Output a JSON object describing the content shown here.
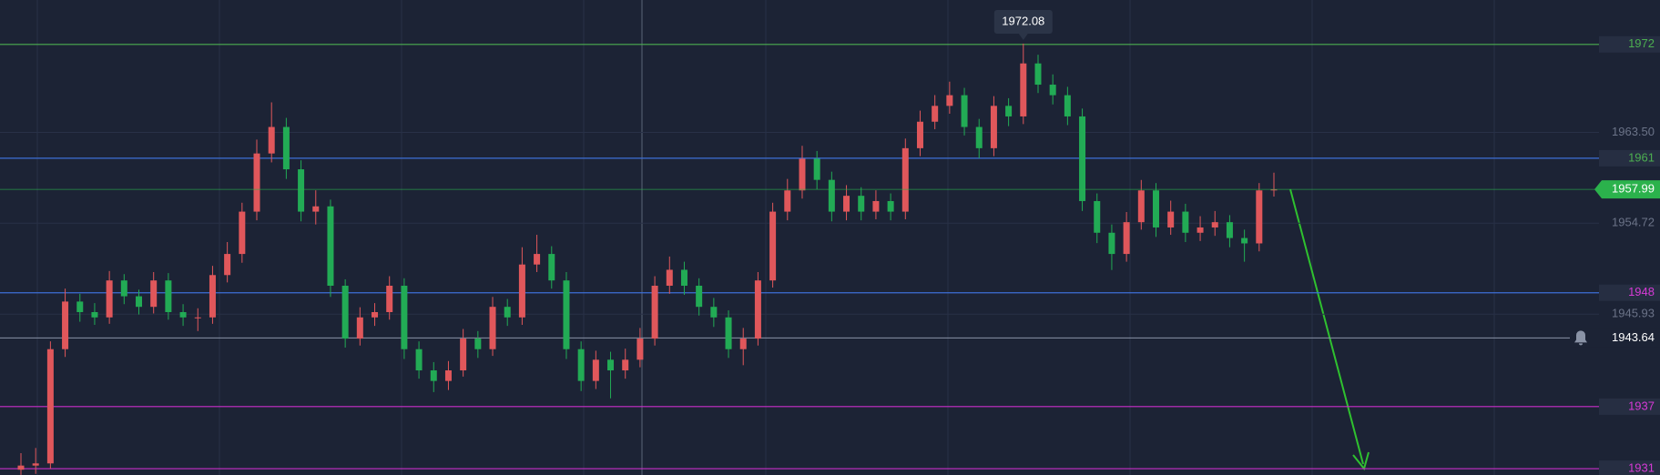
{
  "chart_data": {
    "type": "candlestick",
    "up_color": "#e0575b",
    "down_color": "#22ab55",
    "grid": true,
    "ylim": [
      1930.39,
      1976.29
    ],
    "yticks": [
      {
        "value": 1963.5,
        "label": "1963.50"
      },
      1954.72,
      1945.93
    ],
    "levels": [
      {
        "value": 1972,
        "line_color": "#4caf50",
        "label_color": "#4caf50"
      },
      {
        "value": 1961,
        "line_color": "#3d6fd6",
        "label_color": "#4caf50"
      },
      {
        "value": 1948,
        "line_color": "#3d6fd6",
        "label_color": "#d63ad6"
      },
      {
        "value": 1937,
        "line_color": "#c92fc9",
        "label_color": "#d63ad6"
      },
      {
        "value": 1931,
        "line_color": "#c92fc9",
        "label_color": "#d63ad6"
      }
    ],
    "last_price_color": "#2bb24c",
    "alert": 1943.64,
    "open": [
      1930.9,
      1931.3,
      1931.51,
      1942.55,
      1947.15,
      1946.13,
      1945.62,
      1949.19,
      1947.66,
      1946.64,
      1949.19,
      1946.13,
      1945.62,
      1945.62,
      1949.71,
      1951.75,
      1955.84,
      1961.46,
      1964.02,
      1959.93,
      1955.84,
      1956.35,
      1948.68,
      1943.57,
      1945.62,
      1946.13,
      1948.68,
      1942.55,
      1940.5,
      1939.48,
      1940.5,
      1943.57,
      1942.55,
      1946.64,
      1945.62,
      1950.73,
      1951.75,
      1949.19,
      1942.55,
      1939.48,
      1941.53,
      1940.5,
      1941.53,
      1943.57,
      1948.68,
      1950.22,
      1948.68,
      1946.64,
      1945.62,
      1942.55,
      1943.57,
      1949.19,
      1955.84,
      1957.89,
      1960.95,
      1958.91,
      1955.84,
      1957.37,
      1955.84,
      1956.86,
      1955.84,
      1961.97,
      1964.53,
      1966.06,
      1967.09,
      1964.02,
      1961.97,
      1966.06,
      1965.04,
      1970.16,
      1968.11,
      1967.09,
      1965.04,
      1956.86,
      1953.8,
      1951.75,
      1954.82,
      1957.89,
      1954.31,
      1955.84,
      1953.8,
      1954.31,
      1954.82,
      1953.29,
      1952.77,
      1957.89
    ],
    "high": [
      1932.5,
      1933.0,
      1943.3,
      1948.4,
      1947.9,
      1947.0,
      1950.1,
      1949.8,
      1948.3,
      1950.0,
      1949.9,
      1946.9,
      1946.5,
      1950.6,
      1952.9,
      1956.7,
      1962.8,
      1966.4,
      1964.9,
      1960.8,
      1957.9,
      1957.0,
      1949.3,
      1946.6,
      1947.0,
      1949.6,
      1949.4,
      1943.3,
      1941.3,
      1941.4,
      1944.5,
      1944.3,
      1947.6,
      1947.4,
      1952.4,
      1953.6,
      1952.5,
      1950.0,
      1943.3,
      1942.4,
      1942.3,
      1942.6,
      1944.6,
      1949.6,
      1951.5,
      1951.0,
      1949.4,
      1947.5,
      1946.3,
      1944.6,
      1950.0,
      1956.7,
      1959.0,
      1962.2,
      1961.7,
      1959.7,
      1958.4,
      1958.2,
      1957.9,
      1957.6,
      1962.9,
      1965.6,
      1967.1,
      1968.4,
      1967.8,
      1964.8,
      1967.0,
      1966.8,
      1972.08,
      1971.0,
      1969.1,
      1967.9,
      1965.8,
      1957.6,
      1954.6,
      1955.8,
      1958.9,
      1958.6,
      1956.9,
      1956.6,
      1955.4,
      1955.9,
      1955.5,
      1954.1,
      1958.6,
      1959.6
    ],
    "low": [
      1930.4,
      1930.5,
      1931.0,
      1941.8,
      1945.2,
      1944.9,
      1945.0,
      1946.9,
      1945.9,
      1946.0,
      1945.4,
      1944.8,
      1944.3,
      1945.0,
      1949.0,
      1950.9,
      1955.0,
      1960.6,
      1959.0,
      1954.9,
      1954.6,
      1947.6,
      1942.7,
      1942.9,
      1944.8,
      1945.4,
      1941.6,
      1939.7,
      1938.4,
      1938.6,
      1939.9,
      1941.7,
      1941.9,
      1944.8,
      1944.9,
      1950.0,
      1948.4,
      1941.6,
      1938.5,
      1938.7,
      1937.8,
      1939.7,
      1940.8,
      1942.9,
      1947.9,
      1947.8,
      1945.8,
      1944.7,
      1941.7,
      1941.0,
      1942.9,
      1948.5,
      1955.0,
      1957.1,
      1958.0,
      1954.9,
      1955.0,
      1955.0,
      1955.1,
      1955.0,
      1955.1,
      1961.2,
      1963.8,
      1965.3,
      1963.2,
      1961.0,
      1961.2,
      1964.1,
      1964.3,
      1967.3,
      1966.2,
      1964.2,
      1955.9,
      1952.8,
      1950.2,
      1951.0,
      1954.1,
      1953.4,
      1953.6,
      1952.9,
      1953.0,
      1953.5,
      1952.4,
      1951.0,
      1952.0,
      1957.3
    ],
    "close": [
      1931.3,
      1931.51,
      1942.55,
      1947.15,
      1946.13,
      1945.62,
      1949.19,
      1947.66,
      1946.64,
      1949.19,
      1946.13,
      1945.62,
      1945.62,
      1949.71,
      1951.75,
      1955.84,
      1961.46,
      1964.02,
      1959.93,
      1955.84,
      1956.35,
      1948.68,
      1943.57,
      1945.62,
      1946.13,
      1948.68,
      1942.55,
      1940.5,
      1939.48,
      1940.5,
      1943.57,
      1942.55,
      1946.64,
      1945.62,
      1950.73,
      1951.75,
      1949.19,
      1942.55,
      1939.48,
      1941.53,
      1940.5,
      1941.53,
      1943.57,
      1948.68,
      1950.22,
      1948.68,
      1946.64,
      1945.62,
      1942.55,
      1943.57,
      1949.19,
      1955.84,
      1957.89,
      1960.95,
      1958.91,
      1955.84,
      1957.37,
      1955.84,
      1956.86,
      1955.84,
      1961.97,
      1964.53,
      1966.06,
      1967.09,
      1964.02,
      1961.97,
      1966.06,
      1965.04,
      1970.16,
      1968.11,
      1967.09,
      1965.04,
      1956.86,
      1953.8,
      1951.75,
      1954.82,
      1957.89,
      1954.31,
      1955.84,
      1953.8,
      1954.31,
      1954.82,
      1953.29,
      1952.77,
      1957.89,
      1957.99
    ]
  }
}
